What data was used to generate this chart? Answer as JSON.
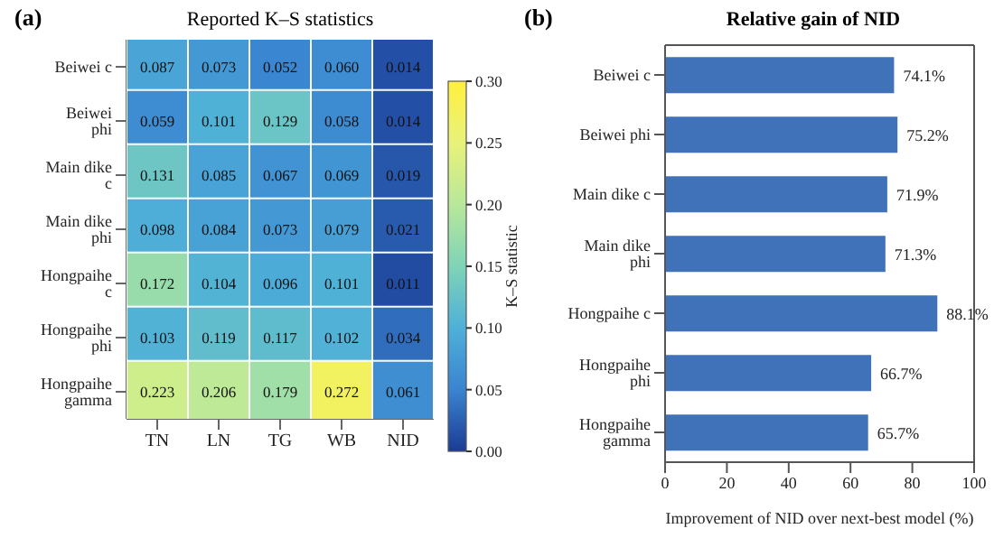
{
  "chart_data": [
    {
      "type": "heatmap",
      "title": "Reported K–S statistics",
      "annotations": [
        "(a)"
      ],
      "clabel": "K–S statistic",
      "categories": [
        "TN",
        "LN",
        "TG",
        "WB",
        "NID"
      ],
      "y_categories": [
        "Beiwei c",
        "Beiwei phi",
        "Main dike c",
        "Main dike phi",
        "Hongpaihe c",
        "Hongpaihe phi",
        "Hongpaihe gamma"
      ],
      "cells": [
        [
          0.087,
          0.073,
          0.052,
          0.06,
          0.014
        ],
        [
          0.059,
          0.101,
          0.129,
          0.058,
          0.014
        ],
        [
          0.131,
          0.085,
          0.067,
          0.069,
          0.019
        ],
        [
          0.098,
          0.084,
          0.073,
          0.079,
          0.021
        ],
        [
          0.172,
          0.104,
          0.096,
          0.101,
          0.011
        ],
        [
          0.103,
          0.119,
          0.117,
          0.102,
          0.034
        ],
        [
          0.223,
          0.206,
          0.179,
          0.272,
          0.061
        ]
      ],
      "cell_labels": [
        [
          "0.087",
          "0.073",
          "0.052",
          "0.060",
          "0.014"
        ],
        [
          "0.059",
          "0.101",
          "0.129",
          "0.058",
          "0.014"
        ],
        [
          "0.131",
          "0.085",
          "0.067",
          "0.069",
          "0.019"
        ],
        [
          "0.098",
          "0.084",
          "0.073",
          "0.079",
          "0.021"
        ],
        [
          "0.172",
          "0.104",
          "0.096",
          "0.101",
          "0.011"
        ],
        [
          "0.103",
          "0.119",
          "0.117",
          "0.102",
          "0.034"
        ],
        [
          "0.223",
          "0.206",
          "0.179",
          "0.272",
          "0.061"
        ]
      ],
      "clim": [
        0,
        0.3
      ],
      "cticks": [
        {
          "value": 0,
          "label": "0.00"
        },
        0.05,
        {
          "value": 0.1,
          "label": "0.10"
        },
        0.15,
        {
          "value": 0.2,
          "label": "0.20"
        },
        0.25,
        {
          "value": 0.3,
          "label": "0.30"
        }
      ]
    },
    {
      "type": "bar",
      "orientation": "horizontal",
      "title": "Relative gain of NID",
      "annotations": [
        "(b)"
      ],
      "xlabel": "Improvement of NID over next-best model (%)",
      "categories": [
        "Beiwei c",
        "Beiwei phi",
        "Main dike c",
        "Main dike phi",
        "Hongpaihe c",
        "Hongpaihe phi",
        "Hongpaihe gamma"
      ],
      "values": [
        74.1,
        75.2,
        71.9,
        71.3,
        88.1,
        66.7,
        65.7
      ],
      "color": "#3f72b9",
      "value_labels": [
        "74.1%",
        "75.2%",
        "71.9%",
        "71.3%",
        "88.1%",
        "66.7%",
        "65.7%"
      ],
      "xlim": [
        0,
        100
      ],
      "xticks": [
        0,
        20,
        40,
        60,
        80,
        100
      ]
    }
  ]
}
